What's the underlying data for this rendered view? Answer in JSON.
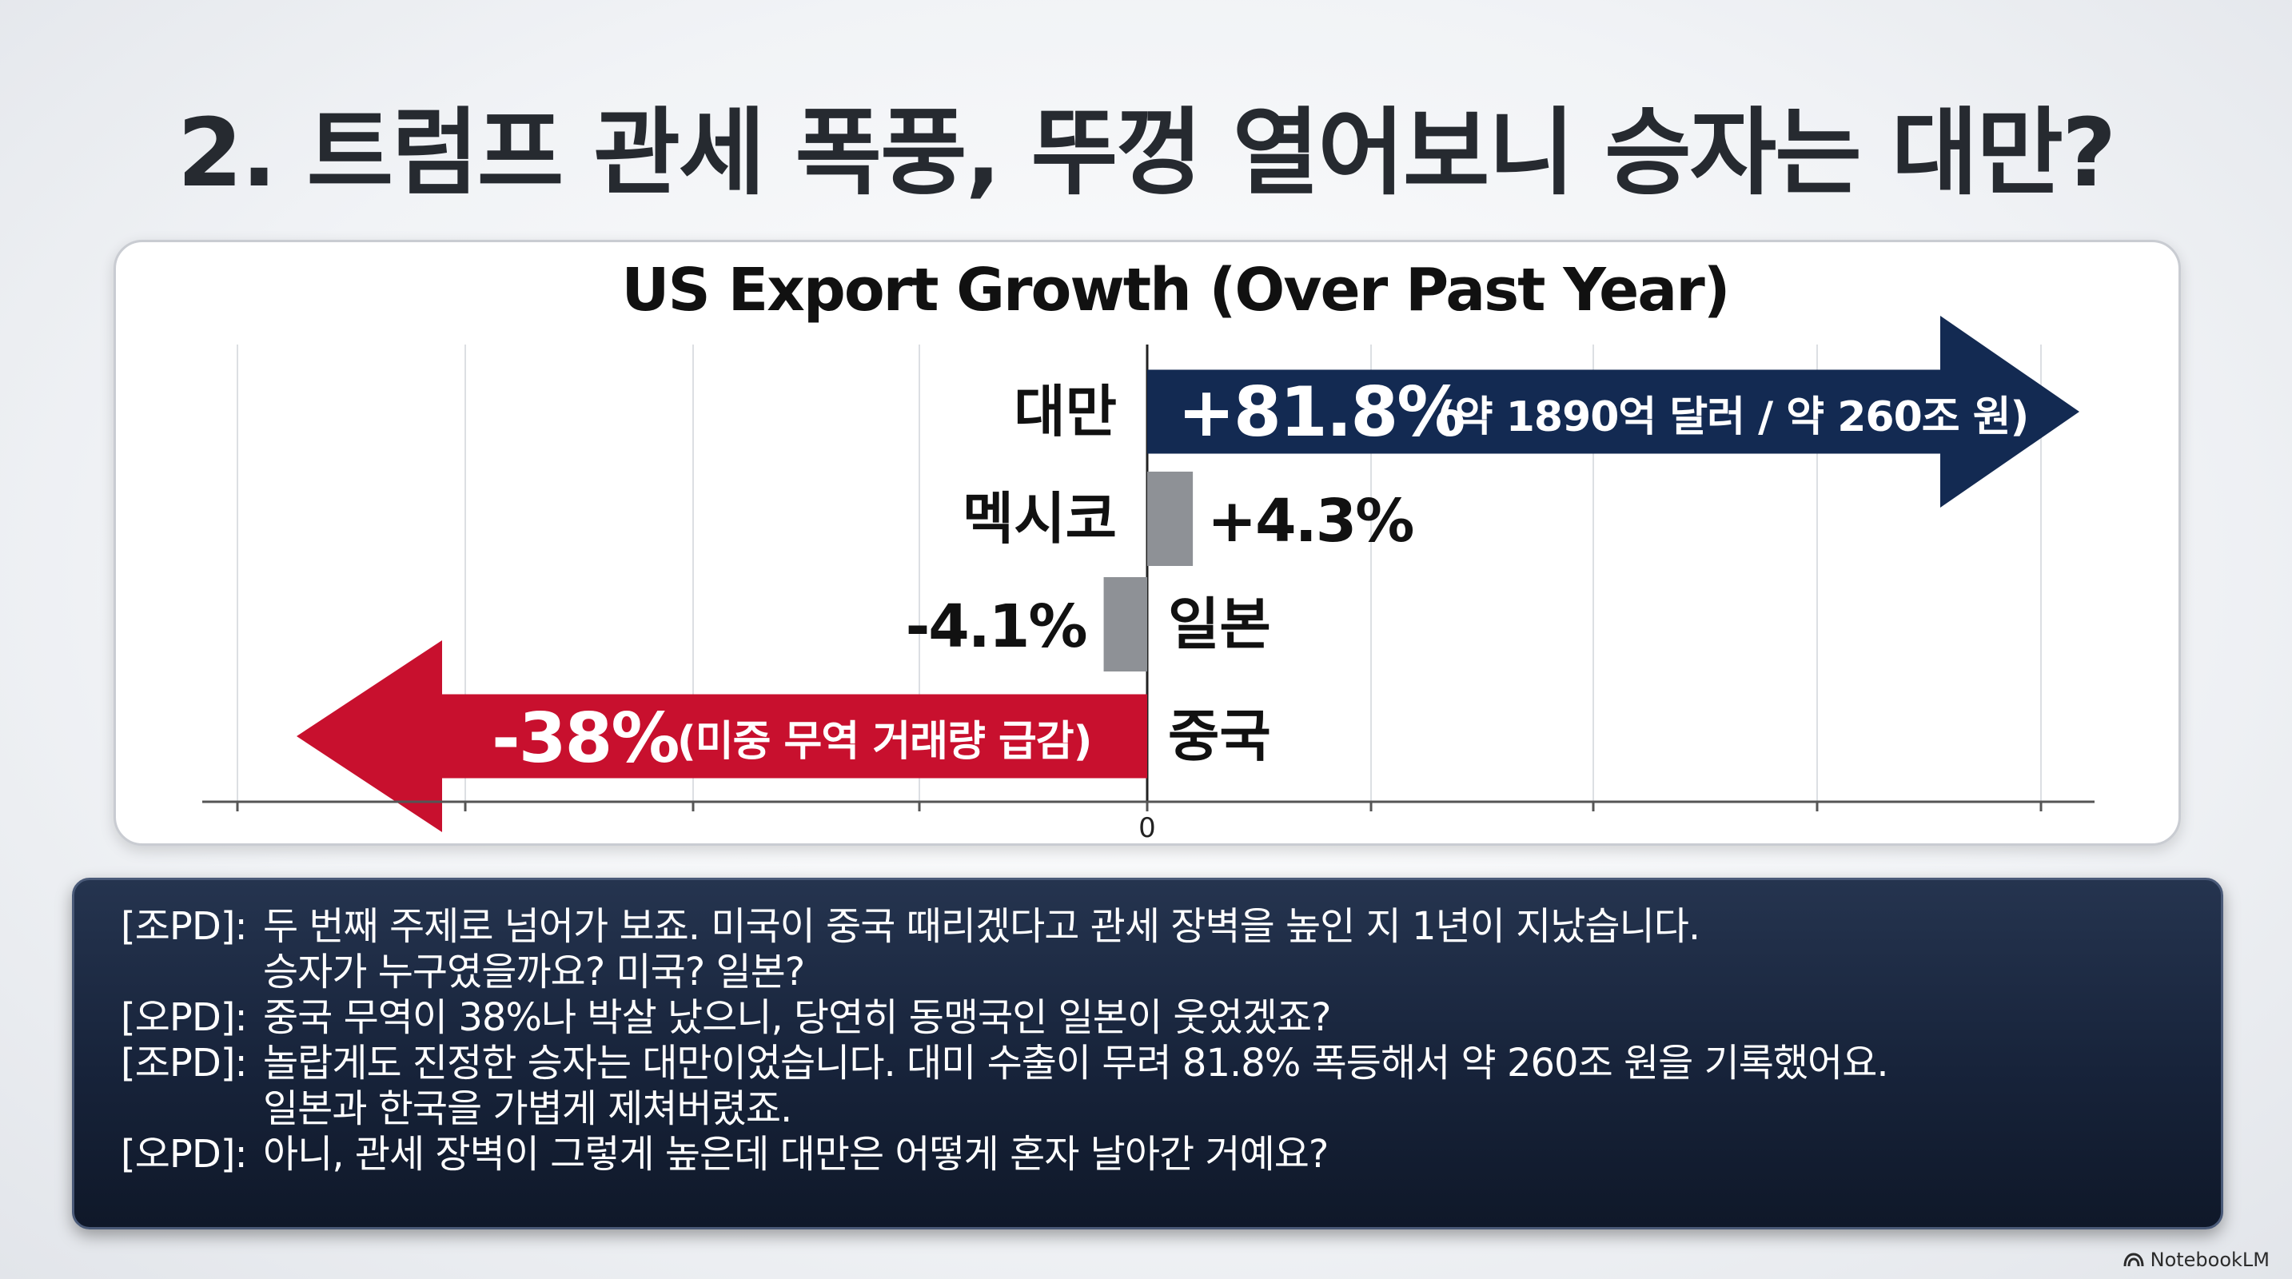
{
  "slide": {
    "title": "2. 트럼프 관세 폭풍, 뚜껑 열어보니 승자는 대만?"
  },
  "chart_data": {
    "type": "bar",
    "orientation": "horizontal",
    "title": "US Export Growth (Over Past Year)",
    "categories": [
      "대만",
      "멕시코",
      "일본",
      "중국"
    ],
    "values": [
      81.8,
      4.3,
      -4.1,
      -38
    ],
    "value_labels": [
      "+81.8%",
      "+4.3%",
      "-4.1%",
      "-38%"
    ],
    "annotations": [
      "(약 1890억 달러 / 약 260조 원)",
      "",
      "",
      "(미중 무역 거래량 급감)"
    ],
    "xticks": [
      "0"
    ],
    "xlim": [
      -50,
      50
    ],
    "grid": true,
    "colors": [
      "#132a52",
      "#8e9196",
      "#8e9196",
      "#c8102e"
    ],
    "arrow_bars": [
      true,
      false,
      false,
      true
    ]
  },
  "dialog": [
    {
      "speaker": "[조PD]:",
      "text": "두 번째 주제로 넘어가 보죠. 미국이 중국 때리겠다고 관세 장벽을 높인 지 1년이 지났습니다."
    },
    {
      "speaker": "",
      "text": "승자가 누구였을까요? 미국? 일본?"
    },
    {
      "speaker": "[오PD]:",
      "text": "중국 무역이 38%나 박살 났으니, 당연히 동맹국인 일본이 웃었겠죠?"
    },
    {
      "speaker": "[조PD]:",
      "text": "놀랍게도 진정한 승자는 대만이었습니다. 대미 수출이 무려 81.8% 폭등해서 약 260조 원을 기록했어요."
    },
    {
      "speaker": "",
      "text": "일본과 한국을 가볍게 제쳐버렸죠."
    },
    {
      "speaker": "[오PD]:",
      "text": "아니, 관세 장벽이 그렇게 높은데 대만은 어떻게 혼자 날아간 거예요?"
    }
  ],
  "watermark": {
    "text": "NotebookLM",
    "icon": "notebooklm-logo-icon"
  }
}
